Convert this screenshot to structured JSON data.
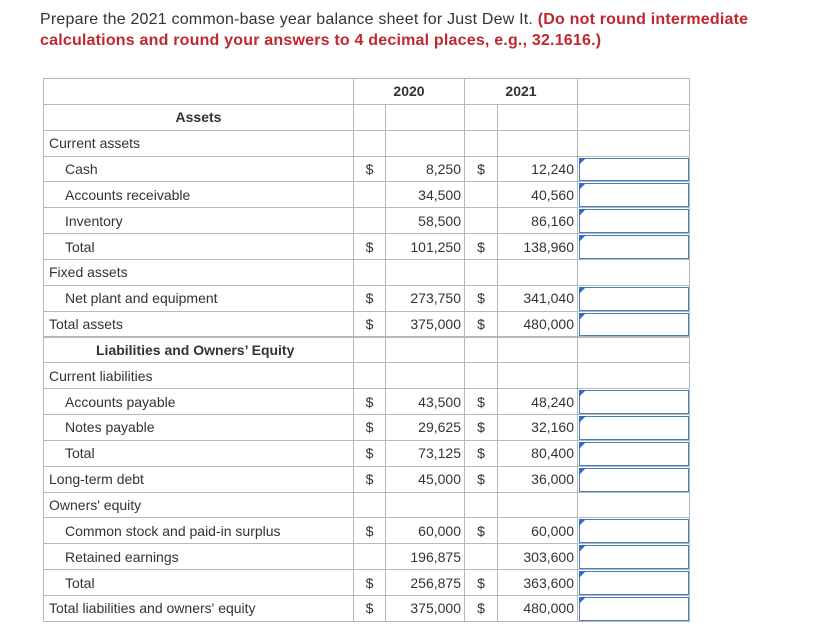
{
  "instruction": {
    "text": "Prepare the 2021 common-base year balance sheet for Just Dew It.",
    "note": "(Do not round intermediate calculations and round your answers to 4 decimal places, e.g., 32.1616.)"
  },
  "table": {
    "columns": [
      "2020",
      "2021"
    ],
    "rows": [
      {
        "label": "Assets"
      },
      {
        "label": "Current assets"
      },
      {
        "label": "Cash",
        "cells": [
          "$",
          "8,250",
          "$",
          "12,240"
        ]
      },
      {
        "label": "Accounts receivable",
        "cells": [
          null,
          "34,500",
          null,
          "40,560"
        ]
      },
      {
        "label": "Inventory",
        "cells": [
          null,
          "58,500",
          null,
          "86,160"
        ]
      },
      {
        "label": "Total",
        "cells": [
          "$",
          "101,250",
          "$",
          "138,960"
        ]
      },
      {
        "label": "Fixed assets"
      },
      {
        "label": "Net plant and equipment",
        "cells": [
          "$",
          "273,750",
          "$",
          "341,040"
        ]
      },
      {
        "label": "Total assets",
        "cells": [
          "$",
          "375,000",
          "$",
          "480,000"
        ]
      },
      {
        "label": "Liabilities and Owners’ Equity"
      },
      {
        "label": "Current liabilities"
      },
      {
        "label": "Accounts payable",
        "cells": [
          "$",
          "43,500",
          "$",
          "48,240"
        ]
      },
      {
        "label": "Notes payable",
        "cells": [
          "$",
          "29,625",
          "$",
          "32,160"
        ]
      },
      {
        "label": "Total",
        "cells": [
          "$",
          "73,125",
          "$",
          "80,400"
        ]
      },
      {
        "label": "Long-term debt",
        "cells": [
          "$",
          "45,000",
          "$",
          "36,000"
        ]
      },
      {
        "label": "Owners' equity"
      },
      {
        "label": "Common stock and paid-in surplus",
        "cells": [
          "$",
          "60,000",
          "$",
          "60,000"
        ]
      },
      {
        "label": "Retained earnings",
        "cells": [
          null,
          "196,875",
          null,
          "303,600"
        ]
      },
      {
        "label": "Total",
        "cells": [
          "$",
          "256,875",
          "$",
          "363,600"
        ]
      },
      {
        "label": "Total liabilities and owners' equity",
        "cells": [
          "$",
          "375,000",
          "$",
          "480,000"
        ]
      }
    ]
  }
}
